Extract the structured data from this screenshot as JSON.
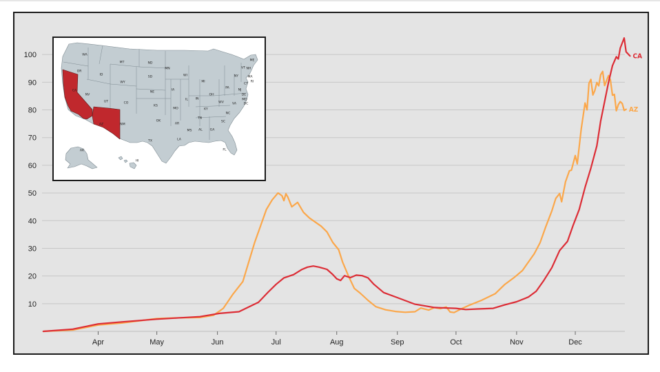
{
  "colors": {
    "background": "#e4e4e4",
    "gridline": "#c6c6c6",
    "map_state_fill": "#c3cdd2",
    "map_highlight": "#c0282d",
    "series_ca": "#dc2c35",
    "series_az": "#fba74a"
  },
  "chart_data": {
    "type": "line",
    "title": "",
    "xlabel": "",
    "ylabel": "",
    "ylim": [
      0,
      110
    ],
    "xlim": [
      0,
      297
    ],
    "x_units": "days since Mar 13",
    "yticks": [
      10,
      20,
      30,
      40,
      50,
      60,
      70,
      80,
      90,
      100
    ],
    "xticks": [
      {
        "label": "Apr",
        "x": 28
      },
      {
        "label": "May",
        "x": 58
      },
      {
        "label": "Jun",
        "x": 89
      },
      {
        "label": "Jul",
        "x": 119
      },
      {
        "label": "Aug",
        "x": 150
      },
      {
        "label": "Sep",
        "x": 181
      },
      {
        "label": "Oct",
        "x": 211
      },
      {
        "label": "Nov",
        "x": 242
      },
      {
        "label": "Dec",
        "x": 272
      }
    ],
    "grid": true,
    "legend": "end-of-line labels",
    "series": [
      {
        "name": "CA",
        "color": "#dc2c35",
        "points": [
          [
            0,
            0
          ],
          [
            15,
            0.8
          ],
          [
            28,
            2.7
          ],
          [
            40,
            3.4
          ],
          [
            58,
            4.4
          ],
          [
            70,
            4.9
          ],
          [
            80,
            5.3
          ],
          [
            90,
            6.5
          ],
          [
            100,
            7.1
          ],
          [
            110,
            10.5
          ],
          [
            115,
            14.2
          ],
          [
            119,
            17
          ],
          [
            123,
            19.3
          ],
          [
            128,
            20.5
          ],
          [
            132,
            22.3
          ],
          [
            135,
            23.2
          ],
          [
            138,
            23.6
          ],
          [
            141,
            23.2
          ],
          [
            145,
            22.4
          ],
          [
            148,
            20.5
          ],
          [
            150,
            19.0
          ],
          [
            152,
            18.4
          ],
          [
            154,
            20.1
          ],
          [
            157,
            19.4
          ],
          [
            160,
            20.3
          ],
          [
            163,
            20.1
          ],
          [
            166,
            19.3
          ],
          [
            169,
            17.0
          ],
          [
            174,
            14.0
          ],
          [
            181,
            12.2
          ],
          [
            190,
            9.8
          ],
          [
            200,
            8.6
          ],
          [
            211,
            8.3
          ],
          [
            216,
            7.9
          ],
          [
            222,
            8.1
          ],
          [
            230,
            8.3
          ],
          [
            236,
            9.6
          ],
          [
            242,
            10.7
          ],
          [
            248,
            12.4
          ],
          [
            252,
            14.5
          ],
          [
            256,
            18.5
          ],
          [
            260,
            23
          ],
          [
            264,
            29.2
          ],
          [
            268,
            32.5
          ],
          [
            271,
            38.5
          ],
          [
            274,
            44
          ],
          [
            277,
            52
          ],
          [
            280,
            59
          ],
          [
            283,
            67
          ],
          [
            285,
            76
          ],
          [
            287,
            83
          ],
          [
            289,
            90
          ],
          [
            291,
            96
          ],
          [
            293,
            99.2
          ],
          [
            294,
            98.4
          ],
          [
            295,
            102.3
          ],
          [
            297,
            106
          ],
          [
            298,
            101
          ],
          [
            300,
            99.5
          ]
        ]
      },
      {
        "name": "AZ",
        "color": "#fba74a",
        "points": [
          [
            0,
            0
          ],
          [
            15,
            0.5
          ],
          [
            28,
            2.3
          ],
          [
            40,
            3.0
          ],
          [
            58,
            4.6
          ],
          [
            70,
            4.9
          ],
          [
            80,
            5.0
          ],
          [
            87,
            5.8
          ],
          [
            92,
            8.3
          ],
          [
            97,
            13.5
          ],
          [
            102,
            18
          ],
          [
            105,
            25
          ],
          [
            108,
            32
          ],
          [
            111,
            38
          ],
          [
            114,
            44
          ],
          [
            117,
            47.5
          ],
          [
            120,
            50
          ],
          [
            122,
            49
          ],
          [
            123,
            47.2
          ],
          [
            124,
            49.7
          ],
          [
            125,
            48.5
          ],
          [
            127,
            45
          ],
          [
            130,
            46.6
          ],
          [
            133,
            43
          ],
          [
            136,
            41
          ],
          [
            139,
            39.5
          ],
          [
            142,
            38.0
          ],
          [
            145,
            35.9
          ],
          [
            148,
            32.1
          ],
          [
            151,
            29.5
          ],
          [
            153,
            25
          ],
          [
            156,
            20
          ],
          [
            159,
            15.5
          ],
          [
            162,
            13.8
          ],
          [
            166,
            11.2
          ],
          [
            170,
            8.9
          ],
          [
            175,
            7.8
          ],
          [
            180,
            7.2
          ],
          [
            185,
            6.9
          ],
          [
            190,
            7.1
          ],
          [
            193,
            8.4
          ],
          [
            197,
            7.7
          ],
          [
            200,
            8.6
          ],
          [
            203,
            8.2
          ],
          [
            206,
            8.8
          ],
          [
            208,
            7.0
          ],
          [
            210,
            6.8
          ],
          [
            213,
            7.9
          ],
          [
            218,
            9.5
          ],
          [
            224,
            11.2
          ],
          [
            231,
            13.6
          ],
          [
            236,
            17
          ],
          [
            241,
            19.6
          ],
          [
            245,
            22
          ],
          [
            248,
            25
          ],
          [
            251,
            28
          ],
          [
            254,
            32
          ],
          [
            257,
            38
          ],
          [
            260,
            43.5
          ],
          [
            262,
            48
          ],
          [
            264,
            49.8
          ],
          [
            265,
            46.8
          ],
          [
            267,
            54
          ],
          [
            269,
            58
          ],
          [
            270,
            58.2
          ],
          [
            272,
            63.5
          ],
          [
            273,
            60.5
          ],
          [
            275,
            73
          ],
          [
            277,
            82.5
          ],
          [
            278,
            80
          ],
          [
            279,
            89.6
          ],
          [
            280,
            91
          ],
          [
            281,
            85.4
          ],
          [
            282,
            87
          ],
          [
            283,
            89.9
          ],
          [
            284,
            88.7
          ],
          [
            285,
            92.7
          ],
          [
            286,
            93.9
          ],
          [
            287,
            88.8
          ],
          [
            289,
            92.4
          ],
          [
            290,
            90.7
          ],
          [
            291,
            85.3
          ],
          [
            292,
            85.6
          ],
          [
            293,
            79.7
          ],
          [
            294,
            81.9
          ],
          [
            295,
            83.0
          ],
          [
            296,
            82.3
          ],
          [
            297,
            79.8
          ],
          [
            298,
            80.2
          ]
        ]
      }
    ]
  },
  "inset_map": {
    "highlighted_states": [
      "CA",
      "AZ"
    ],
    "labels": [
      "WA",
      "OR",
      "CA",
      "NV",
      "ID",
      "MT",
      "WY",
      "UT",
      "AZ",
      "CO",
      "NM",
      "ND",
      "SD",
      "NE",
      "KS",
      "OK",
      "TX",
      "MN",
      "IA",
      "MO",
      "AR",
      "LA",
      "WI",
      "IL",
      "MI",
      "IN",
      "OH",
      "KY",
      "TN",
      "MS",
      "AL",
      "GA",
      "FL",
      "SC",
      "NC",
      "VA",
      "WV",
      "PA",
      "NY",
      "ME",
      "NH",
      "VT",
      "MA",
      "CT",
      "NJ",
      "DE",
      "MD",
      "DC",
      "RI",
      "AK",
      "HI"
    ]
  }
}
